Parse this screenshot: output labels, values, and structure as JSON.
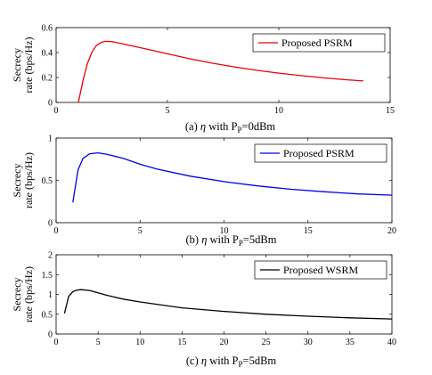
{
  "chart_data": [
    {
      "type": "line",
      "caption_prefix": "(a) ",
      "caption_eta": "η",
      "caption_with": " with P",
      "caption_sub": "P",
      "caption_value": "=0dBm",
      "ylabel_line1": "Secrecy",
      "ylabel_line2": "rate (bps/Hz)",
      "xlim": [
        0,
        15
      ],
      "ylim": [
        0,
        0.6
      ],
      "xticks": [
        0,
        5,
        10,
        15
      ],
      "yticks": [
        0,
        0.2,
        0.4,
        0.6
      ],
      "xtick_labels": [
        "0",
        "5",
        "10",
        "15"
      ],
      "ytick_labels": [
        "0",
        "0.2",
        "0.4",
        "0.6"
      ],
      "legend_position": "top-right",
      "series": [
        {
          "name": "Proposed PSRM",
          "color": "#e8000b",
          "x": [
            1.0,
            1.2,
            1.4,
            1.6,
            1.8,
            2.0,
            2.2,
            2.5,
            3.0,
            4.0,
            5.0,
            6.0,
            7.0,
            8.0,
            9.0,
            10.0,
            11.0,
            12.0,
            13.0,
            13.8
          ],
          "y": [
            0.0,
            0.17,
            0.31,
            0.4,
            0.455,
            0.48,
            0.49,
            0.488,
            0.47,
            0.43,
            0.39,
            0.35,
            0.315,
            0.285,
            0.258,
            0.235,
            0.215,
            0.197,
            0.182,
            0.172
          ]
        }
      ]
    },
    {
      "type": "line",
      "caption_prefix": "(b) ",
      "caption_eta": "η",
      "caption_with": "  with P",
      "caption_sub": "P",
      "caption_value": "=5dBm",
      "ylabel_line1": "Secrecy",
      "ylabel_line2": "rate (bps/Hz)",
      "xlim": [
        0,
        20
      ],
      "ylim": [
        0,
        1
      ],
      "xticks": [
        0,
        5,
        10,
        15,
        20
      ],
      "yticks": [
        0,
        0.5,
        1
      ],
      "xtick_labels": [
        "0",
        "5",
        "10",
        "15",
        "20"
      ],
      "ytick_labels": [
        "0",
        "0.5",
        "1"
      ],
      "legend_position": "top-right",
      "series": [
        {
          "name": "Proposed PSRM",
          "color": "#0000e6",
          "x": [
            1.0,
            1.3,
            1.6,
            2.0,
            2.5,
            3.0,
            4.0,
            5.0,
            6.0,
            8.0,
            10.0,
            12.0,
            14.0,
            16.0,
            18.0,
            20.0
          ],
          "y": [
            0.24,
            0.62,
            0.76,
            0.815,
            0.825,
            0.81,
            0.76,
            0.69,
            0.635,
            0.55,
            0.485,
            0.435,
            0.395,
            0.365,
            0.34,
            0.325
          ]
        }
      ]
    },
    {
      "type": "line",
      "caption_prefix": "(c) ",
      "caption_eta": "η",
      "caption_with": "  with P",
      "caption_sub": "P",
      "caption_value": "=5dBm",
      "ylabel_line1": "Secrecy",
      "ylabel_line2": "rate (bps/Hz)",
      "xlim": [
        0,
        40
      ],
      "ylim": [
        0,
        2
      ],
      "xticks": [
        0,
        5,
        10,
        15,
        20,
        25,
        30,
        35,
        40
      ],
      "yticks": [
        0,
        0.5,
        1,
        1.5,
        2
      ],
      "xtick_labels": [
        "0",
        "5",
        "10",
        "15",
        "20",
        "25",
        "30",
        "35",
        "40"
      ],
      "ytick_labels": [
        "0",
        "0.5",
        "1",
        "1.5",
        "2"
      ],
      "legend_position": "top-right",
      "series": [
        {
          "name": "Proposed WSRM",
          "color": "#000000",
          "x": [
            1.0,
            1.5,
            2.0,
            2.5,
            3.0,
            4.0,
            5.0,
            6.0,
            8.0,
            10.0,
            15.0,
            20.0,
            25.0,
            30.0,
            35.0,
            40.0
          ],
          "y": [
            0.52,
            0.95,
            1.07,
            1.11,
            1.12,
            1.1,
            1.04,
            0.98,
            0.88,
            0.81,
            0.66,
            0.57,
            0.5,
            0.45,
            0.41,
            0.38
          ]
        }
      ]
    }
  ]
}
